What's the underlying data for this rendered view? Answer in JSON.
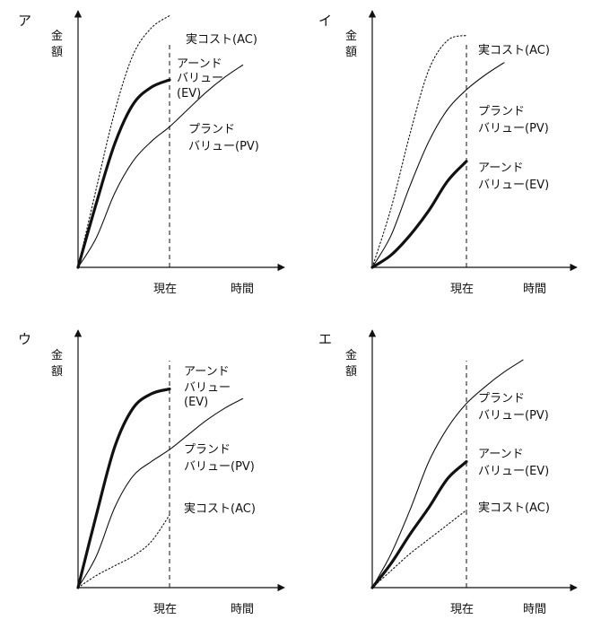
{
  "colors": {
    "ink": "#111111",
    "background": "#ffffff"
  },
  "chart_data": [
    {
      "type": "line",
      "panel": "ア",
      "ylabel": "金額",
      "xlabel": "時間",
      "x_marker": "現在",
      "series": [
        {
          "name": "実コスト(AC)",
          "style": "dotted",
          "points": [
            [
              0,
              0
            ],
            [
              0.15,
              0.32
            ],
            [
              0.3,
              0.63
            ],
            [
              0.45,
              0.86
            ],
            [
              0.6,
              0.97
            ],
            [
              0.75,
              1.02
            ]
          ]
        },
        {
          "name": "アーンドバリュー(EV)",
          "style": "bold",
          "points": [
            [
              0,
              0
            ],
            [
              0.15,
              0.26
            ],
            [
              0.3,
              0.5
            ],
            [
              0.45,
              0.66
            ],
            [
              0.6,
              0.73
            ],
            [
              0.75,
              0.76
            ]
          ]
        },
        {
          "name": "プランドバリュー(PV)",
          "style": "solid",
          "points": [
            [
              0,
              0
            ],
            [
              0.15,
              0.12
            ],
            [
              0.3,
              0.3
            ],
            [
              0.45,
              0.43
            ],
            [
              0.6,
              0.51
            ],
            [
              0.75,
              0.57
            ],
            [
              0.9,
              0.64
            ],
            [
              1.05,
              0.71
            ],
            [
              1.2,
              0.77
            ],
            [
              1.35,
              0.82
            ]
          ]
        }
      ],
      "labels": [
        {
          "text": "実コスト(AC)"
        },
        {
          "text": "アーンド"
        },
        {
          "text": "バリュー"
        },
        {
          "text": "(EV)"
        },
        {
          "text": "プランド"
        },
        {
          "text": "バリュー(PV)"
        }
      ]
    },
    {
      "type": "line",
      "panel": "イ",
      "ylabel": "金額",
      "xlabel": "時間",
      "x_marker": "現在",
      "series": [
        {
          "name": "実コスト(AC)",
          "style": "dotted",
          "points": [
            [
              0,
              0
            ],
            [
              0.15,
              0.24
            ],
            [
              0.3,
              0.54
            ],
            [
              0.45,
              0.8
            ],
            [
              0.6,
              0.92
            ],
            [
              0.75,
              0.94
            ]
          ]
        },
        {
          "name": "プランドバリュー(PV)",
          "style": "solid",
          "points": [
            [
              0,
              0
            ],
            [
              0.15,
              0.13
            ],
            [
              0.3,
              0.33
            ],
            [
              0.45,
              0.51
            ],
            [
              0.6,
              0.64
            ],
            [
              0.75,
              0.72
            ],
            [
              0.9,
              0.78
            ],
            [
              1.05,
              0.83
            ]
          ]
        },
        {
          "name": "アーンドバリュー(EV)",
          "style": "bold",
          "points": [
            [
              0,
              0
            ],
            [
              0.15,
              0.05
            ],
            [
              0.3,
              0.13
            ],
            [
              0.45,
              0.23
            ],
            [
              0.6,
              0.35
            ],
            [
              0.75,
              0.43
            ]
          ]
        }
      ],
      "labels": [
        {
          "text": "実コスト(AC)"
        },
        {
          "text": "プランド"
        },
        {
          "text": "バリュー(PV)"
        },
        {
          "text": "アーンド"
        },
        {
          "text": "バリュー(EV)"
        }
      ]
    },
    {
      "type": "line",
      "panel": "ウ",
      "ylabel": "金額",
      "xlabel": "時間",
      "x_marker": "現在",
      "series": [
        {
          "name": "アーンドバリュー(EV)",
          "style": "bold",
          "points": [
            [
              0,
              0
            ],
            [
              0.15,
              0.3
            ],
            [
              0.3,
              0.58
            ],
            [
              0.45,
              0.74
            ],
            [
              0.6,
              0.8
            ],
            [
              0.75,
              0.82
            ]
          ]
        },
        {
          "name": "プランドバリュー(PV)",
          "style": "solid",
          "points": [
            [
              0,
              0
            ],
            [
              0.15,
              0.13
            ],
            [
              0.3,
              0.33
            ],
            [
              0.45,
              0.46
            ],
            [
              0.6,
              0.52
            ],
            [
              0.75,
              0.57
            ],
            [
              0.9,
              0.63
            ],
            [
              1.05,
              0.69
            ],
            [
              1.2,
              0.74
            ],
            [
              1.35,
              0.78
            ]
          ]
        },
        {
          "name": "実コスト(AC)",
          "style": "dotted",
          "points": [
            [
              0,
              0
            ],
            [
              0.15,
              0.05
            ],
            [
              0.3,
              0.09
            ],
            [
              0.45,
              0.13
            ],
            [
              0.6,
              0.19
            ],
            [
              0.75,
              0.3
            ]
          ]
        }
      ],
      "labels": [
        {
          "text": "アーンド"
        },
        {
          "text": "バリュー"
        },
        {
          "text": "(EV)"
        },
        {
          "text": "プランド"
        },
        {
          "text": "バリュー(PV)"
        },
        {
          "text": "実コスト(AC)"
        }
      ]
    },
    {
      "type": "line",
      "panel": "エ",
      "ylabel": "金額",
      "xlabel": "時間",
      "x_marker": "現在",
      "series": [
        {
          "name": "プランドバリュー(PV)",
          "style": "solid",
          "points": [
            [
              0,
              0
            ],
            [
              0.15,
              0.14
            ],
            [
              0.3,
              0.32
            ],
            [
              0.45,
              0.52
            ],
            [
              0.6,
              0.66
            ],
            [
              0.75,
              0.76
            ],
            [
              0.9,
              0.83
            ],
            [
              1.05,
              0.89
            ],
            [
              1.2,
              0.94
            ]
          ]
        },
        {
          "name": "アーンドバリュー(EV)",
          "style": "bold",
          "points": [
            [
              0,
              0
            ],
            [
              0.15,
              0.1
            ],
            [
              0.3,
              0.22
            ],
            [
              0.45,
              0.33
            ],
            [
              0.6,
              0.45
            ],
            [
              0.75,
              0.52
            ]
          ]
        },
        {
          "name": "実コスト(AC)",
          "style": "dotted",
          "points": [
            [
              0,
              0
            ],
            [
              0.15,
              0.07
            ],
            [
              0.3,
              0.14
            ],
            [
              0.45,
              0.2
            ],
            [
              0.6,
              0.26
            ],
            [
              0.75,
              0.32
            ]
          ]
        }
      ],
      "labels": [
        {
          "text": "プランド"
        },
        {
          "text": "バリュー(PV)"
        },
        {
          "text": "アーンド"
        },
        {
          "text": "バリュー(EV)"
        },
        {
          "text": "実コスト(AC)"
        }
      ]
    }
  ]
}
